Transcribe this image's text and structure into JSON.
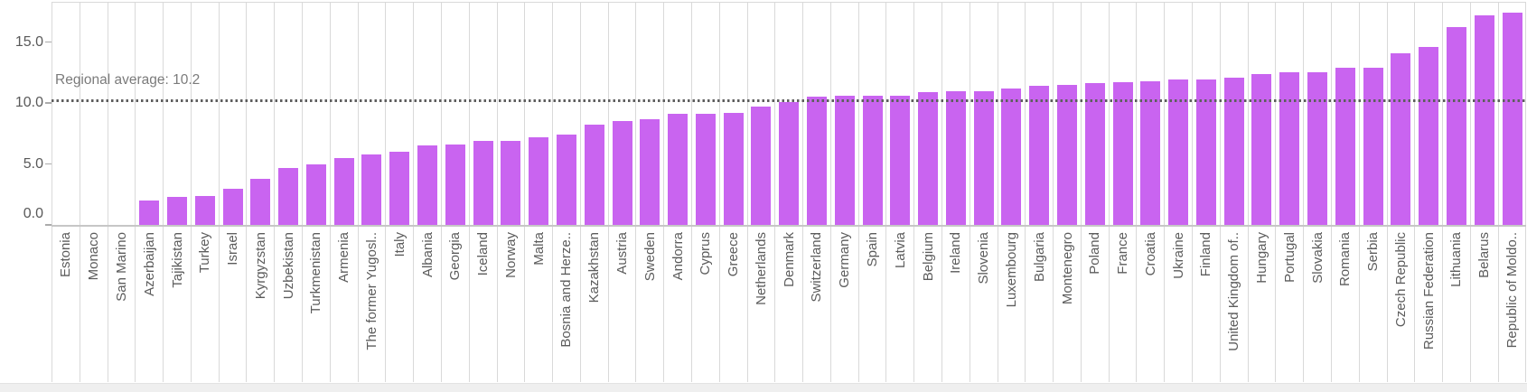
{
  "chart_data": {
    "type": "bar",
    "title": "",
    "xlabel": "",
    "ylabel": "",
    "categories": [
      "Estonia",
      "Monaco",
      "San Marino",
      "Azerbaijan",
      "Tajikistan",
      "Turkey",
      "Israel",
      "Kyrgyzstan",
      "Uzbekistan",
      "Turkmenistan",
      "Armenia",
      "The former Yugosl..",
      "Italy",
      "Albania",
      "Georgia",
      "Iceland",
      "Norway",
      "Malta",
      "Bosnia and Herze..",
      "Kazakhstan",
      "Austria",
      "Sweden",
      "Andorra",
      "Cyprus",
      "Greece",
      "Netherlands",
      "Denmark",
      "Switzerland",
      "Germany",
      "Spain",
      "Latvia",
      "Belgium",
      "Ireland",
      "Slovenia",
      "Luxembourg",
      "Bulgaria",
      "Montenegro",
      "Poland",
      "France",
      "Croatia",
      "Ukraine",
      "Finland",
      "United Kingdom of..",
      "Hungary",
      "Portugal",
      "Slovakia",
      "Romania",
      "Serbia",
      "Czech Republic",
      "Russian Federation",
      "Lithuania",
      "Belarus",
      "Republic of Moldo.."
    ],
    "values": [
      null,
      null,
      null,
      2.0,
      2.3,
      2.4,
      3.0,
      3.8,
      4.7,
      5.0,
      5.5,
      5.8,
      6.0,
      6.5,
      6.6,
      6.9,
      6.9,
      7.2,
      7.4,
      8.2,
      8.5,
      8.7,
      9.1,
      9.1,
      9.2,
      9.7,
      10.1,
      10.5,
      10.6,
      10.6,
      10.6,
      10.9,
      11.0,
      11.0,
      11.2,
      11.4,
      11.5,
      11.6,
      11.7,
      11.8,
      11.9,
      11.9,
      12.1,
      12.4,
      12.5,
      12.5,
      12.9,
      12.9,
      14.1,
      14.6,
      16.2,
      17.2,
      17.4
    ],
    "ylim": [
      0,
      18.3
    ],
    "yticks": [
      {
        "value": 0,
        "label": "0.0"
      },
      {
        "value": 5,
        "label": "5.0"
      },
      {
        "value": 10,
        "label": "10.0"
      },
      {
        "value": 15,
        "label": "15.0"
      }
    ],
    "annotation": {
      "label": "Regional average: 10.2",
      "value": 10.2
    },
    "bar_color": "#c964f0",
    "grid": "vertical-column-separators",
    "legend": "none",
    "x_labels_rotation": "90deg-bottom-to-top"
  }
}
